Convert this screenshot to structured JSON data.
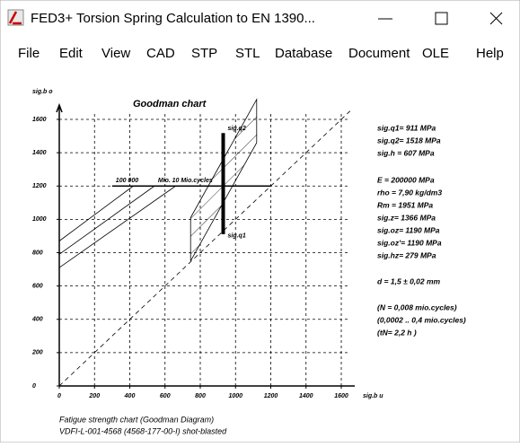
{
  "window": {
    "title": "FED3+  Torsion Spring Calculation to EN 1390..."
  },
  "menu": [
    "File",
    "Edit",
    "View",
    "CAD",
    "STP",
    "STL",
    "Database",
    "Document",
    "OLE",
    "Help"
  ],
  "chart_data": {
    "type": "line",
    "title": "Goodman chart",
    "y_label": "sig.b o",
    "x_label": "sig.b u",
    "xlim": [
      0,
      1600
    ],
    "ylim": [
      0,
      1600
    ],
    "xticks": [
      0,
      200,
      400,
      600,
      800,
      1000,
      1200,
      1400,
      1600
    ],
    "yticks": [
      0,
      200,
      400,
      600,
      800,
      1000,
      1200,
      1400,
      1600
    ],
    "grid": true,
    "color": "#000000",
    "series": [
      {
        "x": [
          0,
          1650
        ],
        "y": [
          0,
          1650
        ]
      },
      {
        "x": [
          0,
          420
        ],
        "y": [
          870,
          1200
        ]
      },
      {
        "x": [
          0,
          540
        ],
        "y": [
          790,
          1200
        ]
      },
      {
        "x": [
          0,
          660
        ],
        "y": [
          710,
          1200
        ]
      },
      {
        "x": [
          300,
          1200
        ],
        "y": [
          1200,
          1200
        ]
      },
      {
        "x": [
          745,
          745,
          1120,
          1120,
          745
        ],
        "y": [
          750,
          1010,
          1720,
          1460,
          750
        ]
      },
      {
        "x": [
          930,
          930
        ],
        "y": [
          911,
          1518
        ]
      }
    ],
    "annotations": [
      "sig.q2",
      "sig.q1",
      "100 000",
      "Mio.",
      "10 Mio.cycles"
    ]
  },
  "results": [
    [
      "sig.q1= 911 MPa",
      "sig.q2= 1518 MPa",
      "sig.h = 607 MPa"
    ],
    [
      "E = 200000 MPa",
      "rho = 7,90 kg/dm3",
      "Rm = 1951 MPa",
      "sig.z= 1366 MPa",
      "sig.oz= 1190 MPa",
      "sig.oz'= 1190 MPa",
      "sig.hz= 279 MPa"
    ],
    [
      "d = 1,5 ± 0,02 mm"
    ],
    [
      "(N = 0,008 mio.cycles)",
      "(0,0002 .. 0,4 mio.cycles)",
      "(tN= 2,2 h )"
    ]
  ],
  "footer": [
    "Fatigue strength chart (Goodman Diagram)",
    "VDFI-L-001-4568 (4568-177-00-I) shot-blasted"
  ]
}
